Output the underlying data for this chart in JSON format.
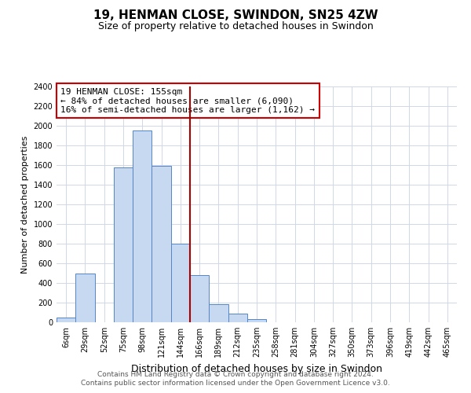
{
  "title": "19, HENMAN CLOSE, SWINDON, SN25 4ZW",
  "subtitle": "Size of property relative to detached houses in Swindon",
  "xlabel": "Distribution of detached houses by size in Swindon",
  "ylabel": "Number of detached properties",
  "categories": [
    "6sqm",
    "29sqm",
    "52sqm",
    "75sqm",
    "98sqm",
    "121sqm",
    "144sqm",
    "166sqm",
    "189sqm",
    "212sqm",
    "235sqm",
    "258sqm",
    "281sqm",
    "304sqm",
    "327sqm",
    "350sqm",
    "373sqm",
    "396sqm",
    "419sqm",
    "442sqm",
    "465sqm"
  ],
  "values": [
    50,
    500,
    0,
    1580,
    1950,
    1590,
    800,
    480,
    185,
    90,
    35,
    0,
    0,
    0,
    0,
    0,
    0,
    0,
    0,
    0,
    0
  ],
  "bar_color": "#c6d9f0",
  "bar_edge_color": "#5585c8",
  "vline_color": "#aa0000",
  "annotation_line1": "19 HENMAN CLOSE: 155sqm",
  "annotation_line2": "← 84% of detached houses are smaller (6,090)",
  "annotation_line3": "16% of semi-detached houses are larger (1,162) →",
  "annotation_box_edgecolor": "#cc0000",
  "ylim": [
    0,
    2400
  ],
  "yticks": [
    0,
    200,
    400,
    600,
    800,
    1000,
    1200,
    1400,
    1600,
    1800,
    2000,
    2200,
    2400
  ],
  "footnote1": "Contains HM Land Registry data © Crown copyright and database right 2024.",
  "footnote2": "Contains public sector information licensed under the Open Government Licence v3.0.",
  "bg_color": "#ffffff",
  "grid_color": "#d0d8e8",
  "title_fontsize": 11,
  "subtitle_fontsize": 9,
  "xlabel_fontsize": 9,
  "ylabel_fontsize": 8,
  "tick_fontsize": 7,
  "annotation_fontsize": 8,
  "footnote_fontsize": 6.5
}
